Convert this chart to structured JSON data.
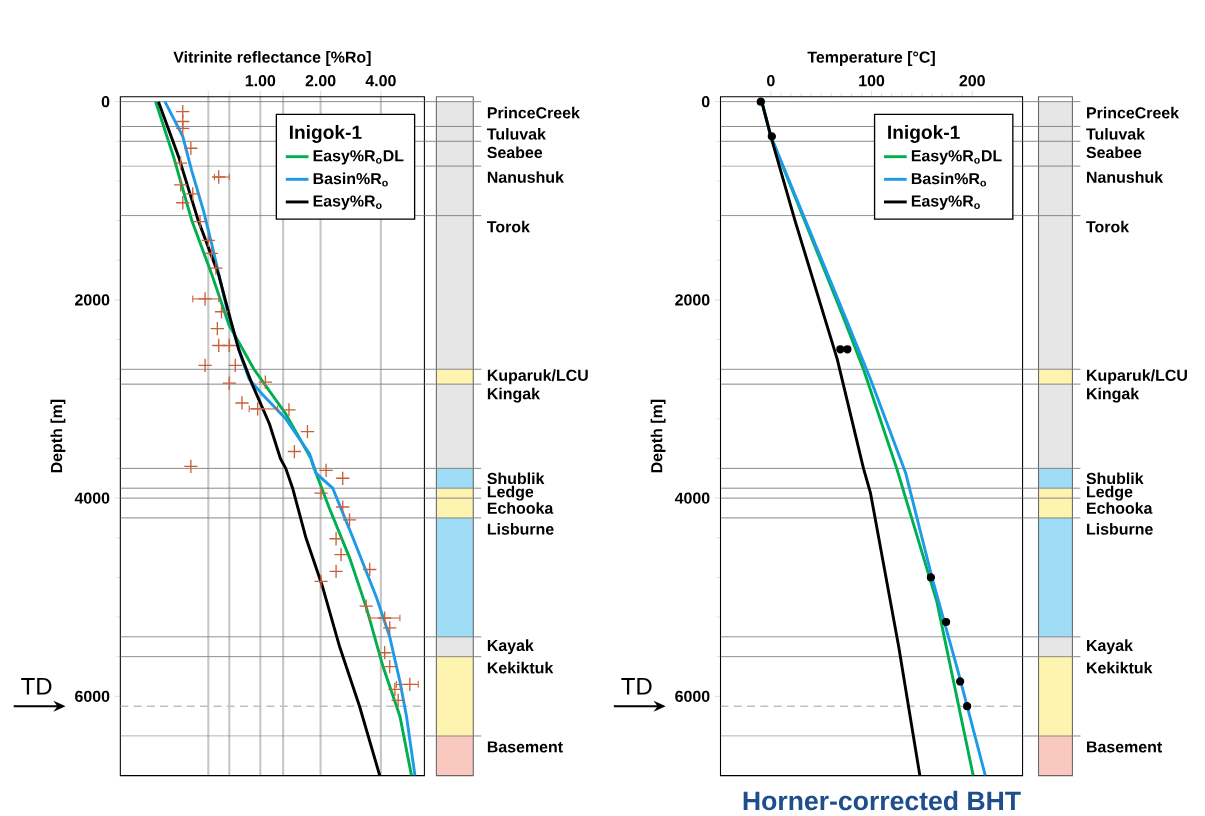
{
  "chart_data": [
    {
      "type": "line",
      "xlabel": "Vitrinite reflectance [%Ro]",
      "ylabel": "Depth [m]",
      "legend_title": "Inigok-1",
      "log": "x",
      "grid": "x",
      "legend": "top right",
      "xlim": [
        0.2,
        6.6
      ],
      "xticks": [
        {
          "value": 0.55,
          "label": null
        },
        {
          "value": 0.7,
          "label": null
        },
        {
          "value": 1,
          "label": "1.00"
        },
        {
          "value": 1.3,
          "label": null
        },
        {
          "value": 2,
          "label": "2.00"
        },
        {
          "value": 4,
          "label": "4.00"
        }
      ],
      "ylim": [
        6800,
        -50
      ],
      "yticks": [
        0,
        2000,
        4000,
        6000
      ],
      "series": [
        {
          "name": "Easy%R$_{o}$DL",
          "color": "#00b050",
          "x": [
            0.3,
            0.368,
            0.455,
            0.574,
            0.697,
            0.93,
            1.34,
            1.79,
            1.82,
            2.21,
            2.79,
            3.38,
            4.1,
            4.98,
            5.69
          ],
          "values": [
            0,
            550,
            1200,
            1750,
            2250,
            2700,
            3150,
            3600,
            3650,
            4100,
            4600,
            5100,
            5700,
            6200,
            6800
          ]
        },
        {
          "name": "Basin%R$_{o}$",
          "color": "#1e9be8",
          "x": [
            0.334,
            0.41,
            0.455,
            0.52,
            0.574,
            0.683,
            0.81,
            0.88,
            1.02,
            1.34,
            1.76,
            1.9,
            2.3,
            2.9,
            3.8,
            4.43,
            4.98,
            5.37,
            5.92
          ],
          "values": [
            0,
            350,
            700,
            1100,
            1450,
            2100,
            2600,
            2800,
            2950,
            3200,
            3550,
            3750,
            3900,
            4400,
            5000,
            5400,
            5850,
            6200,
            6800
          ]
        },
        {
          "name": "Easy%R$_{o}$",
          "color": "#000000",
          "x": [
            0.31,
            0.39,
            0.49,
            0.62,
            0.71,
            0.78,
            0.91,
            1.11,
            1.26,
            1.34,
            1.45,
            1.69,
            2.05,
            2.49,
            3.13,
            3.95
          ],
          "values": [
            0,
            550,
            1200,
            1750,
            2200,
            2500,
            2850,
            3250,
            3600,
            3700,
            3900,
            4400,
            4900,
            5500,
            6100,
            6800
          ]
        },
        {
          "type": "scatter",
          "marker": "cross",
          "color": "#c8603c",
          "x": [
            0.41,
            0.41,
            0.41,
            0.45,
            0.4,
            0.62,
            0.4,
            0.46,
            0.41,
            0.5,
            0.55,
            0.57,
            0.6,
            0.53,
            0.64,
            0.61,
            0.62,
            0.7,
            0.53,
            0.75,
            0.7,
            1.06,
            0.81,
            1.39,
            0.97,
            1.72,
            1.48,
            0.45,
            2.13,
            2.58,
            2.01,
            2.58,
            2.79,
            2.39,
            2.53,
            2.39,
            2.01,
            3.52,
            3.38,
            4.18,
            4.43,
            4.18,
            4.43,
            5.58,
            4.7,
            4.88
          ],
          "values": [
            100,
            200,
            270,
            470,
            620,
            760,
            840,
            930,
            1020,
            1210,
            1400,
            1530,
            1680,
            1990,
            2120,
            2290,
            2460,
            2460,
            2660,
            2660,
            2840,
            2830,
            3040,
            3110,
            3100,
            3330,
            3530,
            3680,
            3720,
            3800,
            3950,
            4090,
            4220,
            4410,
            4570,
            4740,
            4840,
            4720,
            5090,
            5210,
            5310,
            5560,
            5700,
            5880,
            5930,
            6040
          ],
          "xerrors": [
            null,
            null,
            null,
            null,
            null,
            [
              0.59,
              0.7
            ],
            null,
            null,
            null,
            null,
            null,
            null,
            null,
            [
              0.46,
              0.62
            ],
            null,
            null,
            null,
            null,
            null,
            null,
            null,
            null,
            null,
            null,
            [
              0.88,
              1.22
            ],
            null,
            null,
            null,
            null,
            null,
            null,
            null,
            null,
            null,
            null,
            null,
            null,
            null,
            null,
            [
              3.52,
              4.98
            ],
            null,
            null,
            null,
            [
              4.78,
              6.15
            ],
            null,
            null
          ]
        }
      ],
      "ref_lines": [
        {
          "axis": "y",
          "value": 0,
          "label": "PrinceCreek",
          "color": "#808080"
        },
        {
          "axis": "y",
          "value": 250,
          "label": "Tuluvak",
          "color": "#808080"
        },
        {
          "axis": "y",
          "value": 400,
          "label": "Seabee",
          "color": "#808080"
        },
        {
          "axis": "y",
          "value": 650,
          "label": "Nanushuk",
          "color": "#808080"
        },
        {
          "axis": "y",
          "value": 1150,
          "label": "Torok",
          "color": "#808080"
        },
        {
          "axis": "y",
          "value": 2700,
          "label": "Kuparuk/LCU",
          "color": "#808080"
        },
        {
          "axis": "y",
          "value": 2850,
          "label": "Kingak",
          "color": "#808080"
        },
        {
          "axis": "y",
          "value": 3700,
          "label": "Shublik",
          "color": "#808080"
        },
        {
          "axis": "y",
          "value": 3900,
          "label": "Ledge",
          "color": "#808080"
        },
        {
          "axis": "y",
          "value": 4000,
          "label": "Echooka",
          "color": "#808080"
        },
        {
          "axis": "y",
          "value": 4200,
          "label": "Lisburne",
          "color": "#808080"
        },
        {
          "axis": "y",
          "value": 5400,
          "label": "Kayak",
          "color": "#808080"
        },
        {
          "axis": "y",
          "value": 5600,
          "label": "Kekiktuk",
          "color": "#808080"
        },
        {
          "axis": "y",
          "value": 6400,
          "label": "Basement",
          "color": "#808080"
        },
        {
          "axis": "y",
          "value": 6100,
          "label": "TD",
          "color": "#bfbfbf",
          "line_style": "dashed"
        }
      ]
    },
    {
      "type": "line",
      "xlabel": "Temperature [°C]",
      "ylabel": "Depth [m]",
      "legend_title": "Inigok-1",
      "legend": "top right",
      "xlim": [
        -50,
        250
      ],
      "xticks": [
        0,
        100,
        200
      ],
      "ylim": [
        6800,
        -50
      ],
      "yticks": [
        0,
        2000,
        4000,
        6000
      ],
      "series": [
        {
          "name": "Easy%R$_{o}$DL",
          "color": "#00b050",
          "x": [
            -9,
            0,
            71,
            92,
            125,
            165,
            201
          ],
          "values": [
            0,
            350,
            2150,
            2700,
            3700,
            5050,
            6800
          ]
        },
        {
          "name": "Basin%R$_{o}$",
          "color": "#1e9be8",
          "x": [
            -9,
            0,
            73,
            99,
            134,
            160,
            186,
            213
          ],
          "values": [
            0,
            350,
            2150,
            2800,
            3750,
            4800,
            5750,
            6800
          ]
        },
        {
          "name": "Easy%R$_{o}$",
          "color": "#000000",
          "x": [
            -9,
            0,
            24,
            66,
            92,
            99,
            127,
            148
          ],
          "values": [
            0,
            350,
            1200,
            2600,
            3700,
            3950,
            5500,
            6800
          ]
        },
        {
          "type": "scatter",
          "marker": "circle",
          "color": "#000000",
          "x": [
            -10,
            1,
            69,
            76,
            159,
            174,
            188,
            195
          ],
          "values": [
            0,
            350,
            2500,
            2500,
            4800,
            5250,
            5850,
            6100
          ]
        }
      ],
      "annotations": [
        "Horner-corrected BHT"
      ],
      "ref_lines": [
        {
          "axis": "y",
          "value": 0,
          "label": "PrinceCreek",
          "color": "#808080"
        },
        {
          "axis": "y",
          "value": 250,
          "label": "Tuluvak",
          "color": "#808080"
        },
        {
          "axis": "y",
          "value": 400,
          "label": "Seabee",
          "color": "#808080"
        },
        {
          "axis": "y",
          "value": 650,
          "label": "Nanushuk",
          "color": "#808080"
        },
        {
          "axis": "y",
          "value": 1150,
          "label": "Torok",
          "color": "#808080"
        },
        {
          "axis": "y",
          "value": 2700,
          "label": "Kuparuk/LCU",
          "color": "#808080"
        },
        {
          "axis": "y",
          "value": 2850,
          "label": "Kingak",
          "color": "#808080"
        },
        {
          "axis": "y",
          "value": 3700,
          "label": "Shublik",
          "color": "#808080"
        },
        {
          "axis": "y",
          "value": 3900,
          "label": "Ledge",
          "color": "#808080"
        },
        {
          "axis": "y",
          "value": 4000,
          "label": "Echooka",
          "color": "#808080"
        },
        {
          "axis": "y",
          "value": 4200,
          "label": "Lisburne",
          "color": "#808080"
        },
        {
          "axis": "y",
          "value": 5400,
          "label": "Kayak",
          "color": "#808080"
        },
        {
          "axis": "y",
          "value": 5600,
          "label": "Kekiktuk",
          "color": "#808080"
        },
        {
          "axis": "y",
          "value": 6400,
          "label": "Basement",
          "color": "#808080"
        },
        {
          "axis": "y",
          "value": 6100,
          "label": "TD",
          "color": "#bfbfbf",
          "line_style": "dashed"
        }
      ]
    }
  ]
}
